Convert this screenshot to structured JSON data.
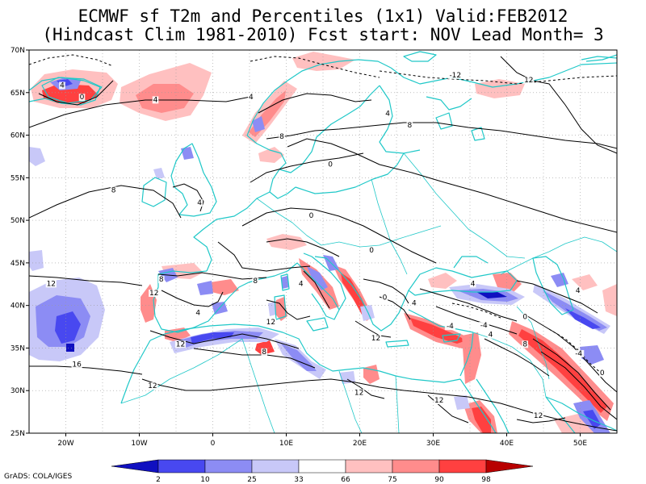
{
  "title_line1": "ECMWF sf T2m and Percentiles (1x1) Valid:FEB2012",
  "title_line2": "(Hindcast Clim 1981-2010) Fcst start: NOV  Lead Month= 3",
  "credit": "GrADS: COLA/IGES",
  "colors": {
    "coast": "#20c8c8",
    "p2": "#1010c0",
    "p10": "#4848f0",
    "p25": "#8c8cf4",
    "p33": "#c8c8f8",
    "p66": "#ffc0c0",
    "p75": "#ff8c8c",
    "p90": "#ff4040",
    "p98": "#b80000"
  },
  "x_ticks": [
    "20W",
    "10W",
    "0",
    "10E",
    "20E",
    "30E",
    "40E",
    "50E"
  ],
  "y_ticks": [
    "70N",
    "65N",
    "60N",
    "55N",
    "50N",
    "45N",
    "40N",
    "35N",
    "30N",
    "25N"
  ],
  "colorbar_labels": [
    "2",
    "10",
    "25",
    "33",
    "66",
    "75",
    "90",
    "98"
  ],
  "contour_labels": [
    {
      "text": "4",
      "lon": -20.5,
      "lat": 65.6
    },
    {
      "text": "0",
      "lon": -17.8,
      "lat": 64.2
    },
    {
      "text": "4",
      "lon": -7.8,
      "lat": 63.9
    },
    {
      "text": "4",
      "lon": 5.2,
      "lat": 64.2
    },
    {
      "text": "-12",
      "lon": 33,
      "lat": 66.8
    },
    {
      "text": "12",
      "lon": 43,
      "lat": 66.2
    },
    {
      "text": "4",
      "lon": 23.8,
      "lat": 62.3
    },
    {
      "text": "8",
      "lon": 9.4,
      "lat": 59.6
    },
    {
      "text": "8",
      "lon": 26.8,
      "lat": 60.9
    },
    {
      "text": "0",
      "lon": 16,
      "lat": 56.3
    },
    {
      "text": "8",
      "lon": -13.5,
      "lat": 53.3
    },
    {
      "text": "4",
      "lon": -1.8,
      "lat": 51.8
    },
    {
      "text": "0",
      "lon": 13.4,
      "lat": 50.3
    },
    {
      "text": "0",
      "lon": 21.6,
      "lat": 46.2
    },
    {
      "text": "8",
      "lon": -7,
      "lat": 42.8
    },
    {
      "text": "12",
      "lon": -8,
      "lat": 41.2
    },
    {
      "text": "8",
      "lon": 5.8,
      "lat": 42.6
    },
    {
      "text": "4",
      "lon": -2,
      "lat": 38.9
    },
    {
      "text": "4",
      "lon": 12,
      "lat": 42.3
    },
    {
      "text": "12",
      "lon": 7.9,
      "lat": 37.8
    },
    {
      "text": "0",
      "lon": 23.4,
      "lat": 40.7
    },
    {
      "text": "4",
      "lon": 27.4,
      "lat": 40
    },
    {
      "text": "12",
      "lon": 22.2,
      "lat": 35.9
    },
    {
      "text": "-4",
      "lon": 32.3,
      "lat": 37.3
    },
    {
      "text": "-4",
      "lon": 36.9,
      "lat": 37.4
    },
    {
      "text": "4",
      "lon": 37.8,
      "lat": 36.3
    },
    {
      "text": "4",
      "lon": 35.4,
      "lat": 42.3
    },
    {
      "text": "0",
      "lon": 42.5,
      "lat": 38.4
    },
    {
      "text": "4",
      "lon": 49.7,
      "lat": 41.5
    },
    {
      "text": "-4",
      "lon": 49.8,
      "lat": 34.1
    },
    {
      "text": "12",
      "lon": -22,
      "lat": 42.3
    },
    {
      "text": "12",
      "lon": -4.4,
      "lat": 35.2
    },
    {
      "text": "8",
      "lon": 7,
      "lat": 34.3
    },
    {
      "text": "8",
      "lon": 42.5,
      "lat": 35.2
    },
    {
      "text": "0",
      "lon": 53,
      "lat": 31.8
    },
    {
      "text": "16",
      "lon": -18.5,
      "lat": 32.8
    },
    {
      "text": "12",
      "lon": -8.2,
      "lat": 30.3
    },
    {
      "text": "12",
      "lon": 19.9,
      "lat": 29.5
    },
    {
      "text": "12",
      "lon": 30.8,
      "lat": 28.6
    },
    {
      "text": "12",
      "lon": 44.3,
      "lat": 26.8
    }
  ]
}
